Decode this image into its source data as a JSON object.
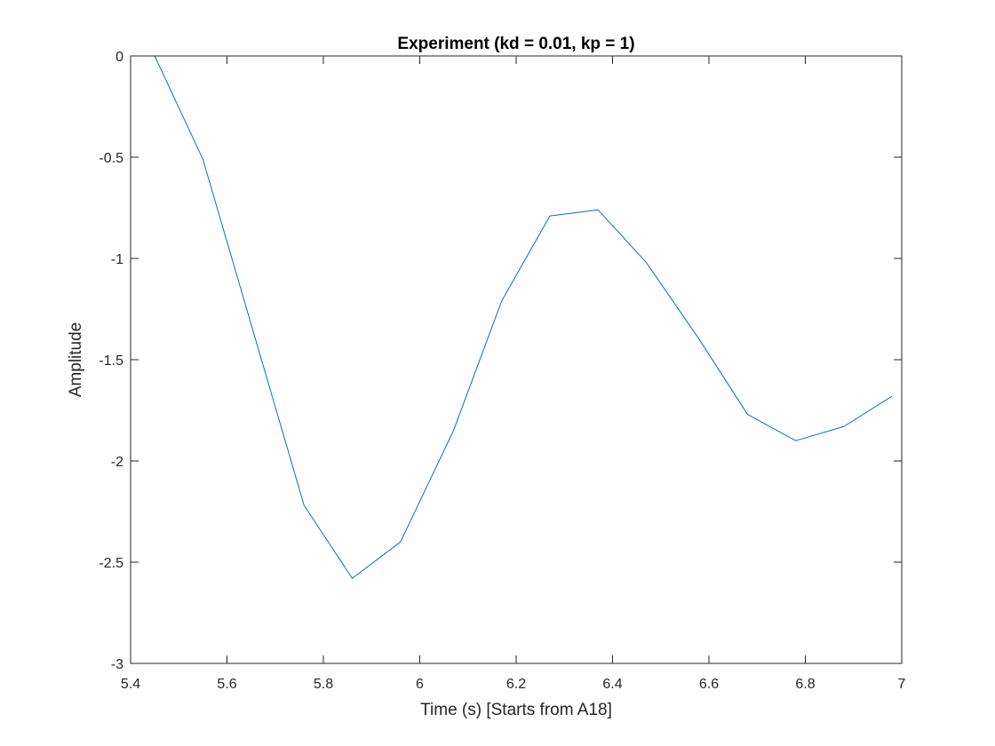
{
  "chart_data": {
    "type": "line",
    "title": "Experiment (kd = 0.01, kp = 1)",
    "xlabel": "Time (s) [Starts from A18]",
    "ylabel": "Amplitude",
    "xlim": [
      5.4,
      7
    ],
    "ylim": [
      -3,
      0
    ],
    "xticks": [
      5.4,
      5.6,
      5.8,
      6,
      6.2,
      6.4,
      6.6,
      6.8,
      7
    ],
    "xtick_labels": [
      "5.4",
      "5.6",
      "5.8",
      "6",
      "6.2",
      "6.4",
      "6.6",
      "6.8",
      "7"
    ],
    "yticks": [
      -3,
      -2.5,
      -2,
      -1.5,
      -1,
      -0.5,
      0
    ],
    "ytick_labels": [
      "-3",
      "-2.5",
      "-2",
      "-1.5",
      "-1",
      "-0.5",
      "0"
    ],
    "grid": false,
    "series": [
      {
        "color": "#0072BD",
        "x": [
          5.45,
          5.55,
          5.76,
          5.86,
          5.96,
          6.07,
          6.17,
          6.27,
          6.37,
          6.47,
          6.58,
          6.68,
          6.78,
          6.88,
          6.98
        ],
        "y": [
          0.0,
          -0.51,
          -2.22,
          -2.58,
          -2.4,
          -1.85,
          -1.21,
          -0.79,
          -0.76,
          -1.02,
          -1.4,
          -1.77,
          -1.9,
          -1.83,
          -1.68
        ]
      }
    ]
  }
}
